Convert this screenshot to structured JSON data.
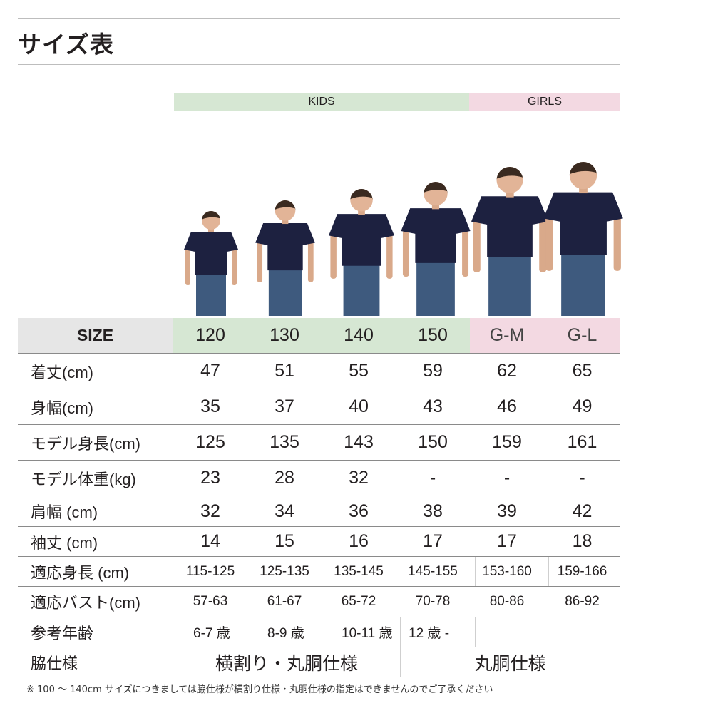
{
  "title": "サイズ表",
  "groups": {
    "kids": "KIDS",
    "girls": "GIRLS"
  },
  "colors": {
    "kids_bg": "#d6e7d3",
    "girls_bg": "#f3d9e2",
    "size_label_bg": "#e6e6e6",
    "shirt": "#1d2140",
    "jeans": "#3e5a7e"
  },
  "size_row": {
    "label": "SIZE",
    "sizes": [
      "120",
      "130",
      "140",
      "150",
      "G-M",
      "G-L"
    ]
  },
  "rows": [
    {
      "label": "着丈(cm)",
      "values": [
        "47",
        "51",
        "55",
        "59",
        "62",
        "65"
      ]
    },
    {
      "label": "身幅(cm)",
      "values": [
        "35",
        "37",
        "40",
        "43",
        "46",
        "49"
      ]
    },
    {
      "label": "モデル身長(cm)",
      "values": [
        "125",
        "135",
        "143",
        "150",
        "159",
        "161"
      ]
    },
    {
      "label": "モデル体重(kg)",
      "values": [
        "23",
        "28",
        "32",
        "-",
        "-",
        "-"
      ]
    },
    {
      "label": "肩幅 (cm)",
      "values": [
        "32",
        "34",
        "36",
        "38",
        "39",
        "42"
      ]
    },
    {
      "label": "袖丈 (cm)",
      "values": [
        "14",
        "15",
        "16",
        "17",
        "17",
        "18"
      ]
    },
    {
      "label": "適応身長 (cm)",
      "values": [
        "115-125",
        "125-135",
        "135-145",
        "145-155",
        "153-160",
        "159-166"
      ]
    },
    {
      "label": "適応バスト(cm)",
      "values": [
        "57-63",
        "61-67",
        "65-72",
        "70-78",
        "80-86",
        "86-92"
      ]
    },
    {
      "label": "参考年齢",
      "values": [
        "6-7 歳",
        "8-9 歳",
        "10-11 歳",
        "12 歳 -"
      ]
    },
    {
      "label": "脇仕様",
      "values": [
        "横割り・丸胴仕様",
        "丸胴仕様"
      ]
    }
  ],
  "footnote": "※ 100 ～ 140cm サイズにつきましては脇仕様が横割り仕様・丸胴仕様の指定はできませんのでご了承ください"
}
